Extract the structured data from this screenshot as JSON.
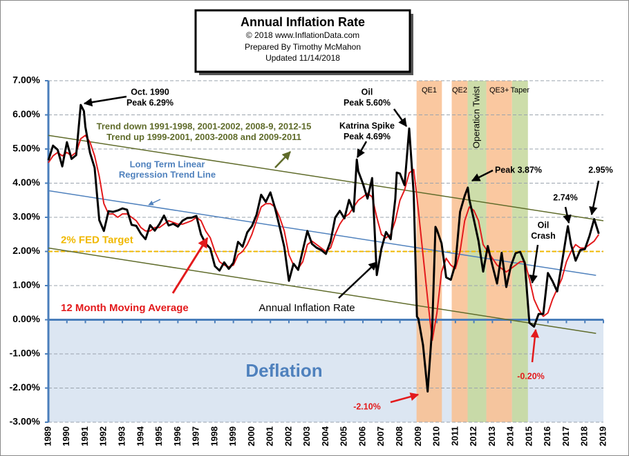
{
  "chart_data": {
    "type": "line",
    "title": "Annual  Inflation Rate",
    "subtitle_lines": [
      "© 2018  www.InflationData.com",
      "Prepared  By Timothy McMahon",
      "Updated  11/14/2018"
    ],
    "xlim": [
      1989,
      2019
    ],
    "xticks": [
      1989,
      1990,
      1991,
      1992,
      1993,
      1994,
      1995,
      1996,
      1997,
      1998,
      1999,
      2000,
      2001,
      2002,
      2003,
      2004,
      2005,
      2006,
      2007,
      2008,
      2009,
      2010,
      2011,
      2012,
      2013,
      2014,
      2015,
      2016,
      2017,
      2018,
      2019
    ],
    "ylim": [
      -3,
      7
    ],
    "yticks": [
      {
        "value": -3,
        "label": "-3.00%"
      },
      {
        "value": -2,
        "label": "-2.00%"
      },
      {
        "value": -1,
        "label": "-1.00%"
      },
      {
        "value": 0,
        "label": "0.00%"
      },
      {
        "value": 1,
        "label": "1.00%"
      },
      {
        "value": 2,
        "label": "2.00%"
      },
      {
        "value": 3,
        "label": "3.00%"
      },
      {
        "value": 4,
        "label": "4.00%"
      },
      {
        "value": 5,
        "label": "5.00%"
      },
      {
        "value": 6,
        "label": "6.00%"
      },
      {
        "value": 7,
        "label": "7.00%"
      }
    ],
    "grid": true,
    "series": [
      {
        "name": "Annual Inflation Rate",
        "color": "#000000",
        "x": [
          1989.0,
          1989.25,
          1989.5,
          1989.75,
          1990.0,
          1990.25,
          1990.5,
          1990.75,
          1990.92,
          1991.0,
          1991.25,
          1991.5,
          1991.75,
          1992.0,
          1992.25,
          1992.5,
          1992.75,
          1993.0,
          1993.25,
          1993.5,
          1993.75,
          1994.0,
          1994.25,
          1994.5,
          1994.75,
          1995.0,
          1995.25,
          1995.5,
          1995.75,
          1996.0,
          1996.25,
          1996.5,
          1996.75,
          1997.0,
          1997.25,
          1997.5,
          1997.75,
          1998.0,
          1998.25,
          1998.5,
          1998.75,
          1999.0,
          1999.25,
          1999.5,
          1999.75,
          2000.0,
          2000.25,
          2000.5,
          2000.75,
          2001.0,
          2001.25,
          2001.5,
          2001.75,
          2002.0,
          2002.25,
          2002.5,
          2002.75,
          2003.0,
          2003.25,
          2003.5,
          2003.75,
          2004.0,
          2004.25,
          2004.5,
          2004.75,
          2005.0,
          2005.25,
          2005.5,
          2005.67,
          2005.75,
          2006.0,
          2006.25,
          2006.5,
          2006.75,
          2007.0,
          2007.25,
          2007.5,
          2007.75,
          2007.83,
          2008.0,
          2008.25,
          2008.5,
          2008.75,
          2008.92,
          2009.0,
          2009.25,
          2009.5,
          2009.75,
          2009.92,
          2010.0,
          2010.25,
          2010.5,
          2010.75,
          2011.0,
          2011.25,
          2011.5,
          2011.67,
          2011.75,
          2012.0,
          2012.25,
          2012.5,
          2012.75,
          2013.0,
          2013.25,
          2013.5,
          2013.75,
          2014.0,
          2014.25,
          2014.5,
          2014.75,
          2015.0,
          2015.25,
          2015.5,
          2015.75,
          2016.0,
          2016.25,
          2016.5,
          2016.75,
          2017.0,
          2017.08,
          2017.25,
          2017.5,
          2017.75,
          2018.0,
          2018.25,
          2018.5,
          2018.75
        ],
        "values": [
          4.67,
          5.1,
          4.98,
          4.49,
          5.2,
          4.71,
          4.82,
          6.29,
          6.11,
          5.65,
          4.89,
          4.45,
          2.92,
          2.6,
          3.18,
          3.16,
          3.2,
          3.26,
          3.22,
          2.78,
          2.75,
          2.52,
          2.36,
          2.77,
          2.61,
          2.8,
          3.05,
          2.76,
          2.81,
          2.73,
          2.9,
          2.98,
          2.99,
          3.04,
          2.5,
          2.23,
          2.09,
          1.57,
          1.44,
          1.68,
          1.49,
          1.67,
          2.28,
          2.14,
          2.56,
          2.74,
          3.07,
          3.66,
          3.45,
          3.73,
          3.27,
          2.72,
          2.13,
          1.14,
          1.64,
          1.46,
          2.03,
          2.6,
          2.22,
          2.11,
          2.04,
          1.93,
          2.29,
          2.99,
          3.19,
          2.97,
          3.51,
          3.17,
          4.69,
          4.35,
          3.99,
          3.55,
          4.15,
          1.31,
          2.08,
          2.57,
          2.36,
          3.54,
          4.31,
          4.28,
          3.94,
          5.6,
          3.66,
          0.09,
          0.03,
          -0.74,
          -2.1,
          -0.18,
          2.72,
          2.63,
          2.24,
          1.24,
          1.17,
          1.63,
          3.16,
          3.63,
          3.87,
          3.53,
          2.93,
          2.3,
          1.41,
          2.16,
          1.59,
          1.06,
          1.96,
          0.96,
          1.58,
          1.95,
          1.99,
          1.66,
          -0.09,
          -0.2,
          0.17,
          0.17,
          1.37,
          1.13,
          0.83,
          1.64,
          2.5,
          2.74,
          2.2,
          1.73,
          2.04,
          2.07,
          2.46,
          2.95,
          2.52
        ]
      },
      {
        "name": "12 Month Moving Average",
        "color": "#e31a1c",
        "x": [
          1989.0,
          1989.25,
          1989.5,
          1989.75,
          1990.0,
          1990.25,
          1990.5,
          1990.75,
          1991.0,
          1991.25,
          1991.5,
          1991.75,
          1992.0,
          1992.25,
          1992.5,
          1992.75,
          1993.0,
          1993.25,
          1993.5,
          1993.75,
          1994.0,
          1994.25,
          1994.5,
          1994.75,
          1995.0,
          1995.25,
          1995.5,
          1995.75,
          1996.0,
          1996.25,
          1996.5,
          1996.75,
          1997.0,
          1997.25,
          1997.5,
          1997.75,
          1998.0,
          1998.25,
          1998.5,
          1998.75,
          1999.0,
          1999.25,
          1999.5,
          1999.75,
          2000.0,
          2000.25,
          2000.5,
          2000.75,
          2001.0,
          2001.25,
          2001.5,
          2001.75,
          2002.0,
          2002.25,
          2002.5,
          2002.75,
          2003.0,
          2003.25,
          2003.5,
          2003.75,
          2004.0,
          2004.25,
          2004.5,
          2004.75,
          2005.0,
          2005.25,
          2005.5,
          2005.75,
          2006.0,
          2006.25,
          2006.5,
          2006.75,
          2007.0,
          2007.25,
          2007.5,
          2007.75,
          2008.0,
          2008.25,
          2008.5,
          2008.75,
          2009.0,
          2009.25,
          2009.5,
          2009.75,
          2010.0,
          2010.25,
          2010.5,
          2010.75,
          2011.0,
          2011.25,
          2011.5,
          2011.75,
          2012.0,
          2012.25,
          2012.5,
          2012.75,
          2013.0,
          2013.25,
          2013.5,
          2013.75,
          2014.0,
          2014.25,
          2014.5,
          2014.75,
          2015.0,
          2015.25,
          2015.5,
          2015.75,
          2016.0,
          2016.25,
          2016.5,
          2016.75,
          2017.0,
          2017.25,
          2017.5,
          2017.75,
          2018.0,
          2018.25,
          2018.5,
          2018.75
        ],
        "values": [
          4.6,
          4.8,
          4.9,
          4.8,
          4.9,
          4.8,
          4.9,
          5.3,
          5.4,
          5.2,
          4.8,
          4.2,
          3.4,
          3.1,
          3.1,
          3.0,
          3.1,
          3.1,
          3.0,
          2.9,
          2.7,
          2.6,
          2.6,
          2.7,
          2.7,
          2.8,
          2.9,
          2.85,
          2.8,
          2.8,
          2.85,
          2.9,
          3.0,
          2.9,
          2.6,
          2.4,
          2.0,
          1.7,
          1.6,
          1.55,
          1.6,
          1.9,
          2.0,
          2.2,
          2.5,
          2.9,
          3.3,
          3.4,
          3.4,
          3.3,
          3.0,
          2.6,
          1.9,
          1.6,
          1.5,
          1.7,
          2.2,
          2.3,
          2.2,
          2.1,
          2.0,
          2.1,
          2.5,
          2.8,
          3.0,
          3.1,
          3.3,
          3.5,
          3.6,
          3.7,
          3.6,
          3.0,
          2.5,
          2.4,
          2.5,
          2.9,
          3.5,
          3.8,
          4.3,
          4.4,
          3.2,
          1.9,
          0.6,
          -0.6,
          0.2,
          1.4,
          1.8,
          1.6,
          1.5,
          2.0,
          2.9,
          3.3,
          3.2,
          2.9,
          2.2,
          2.0,
          1.8,
          1.6,
          1.5,
          1.4,
          1.5,
          1.6,
          1.7,
          1.7,
          1.2,
          0.6,
          0.3,
          0.1,
          0.2,
          0.6,
          0.9,
          1.2,
          1.7,
          2.0,
          2.2,
          2.1,
          2.1,
          2.2,
          2.3,
          2.5
        ]
      }
    ],
    "trend_lines": [
      {
        "label_lines": [
          "Long Term Linear",
          "Regression Trend Line"
        ],
        "color": "#4f81bd",
        "x": [
          1989,
          2018.6
        ],
        "values": [
          3.78,
          1.3
        ]
      },
      {
        "color": "#5f6b2a",
        "x": [
          1989,
          2019
        ],
        "values": [
          5.4,
          2.9
        ]
      },
      {
        "color": "#5f6b2a",
        "x": [
          1989,
          2018.6
        ],
        "values": [
          2.1,
          -0.4
        ]
      }
    ],
    "target": {
      "label": "2% FED Target",
      "value": 2,
      "color": "#f0b800"
    },
    "deflation": {
      "label": "Deflation",
      "color": "#dce6f2"
    },
    "bands": [
      {
        "label": "QE1",
        "start": 2008.9,
        "end": 2010.27,
        "color": "#f9be8f"
      },
      {
        "label": "QE2",
        "start": 2010.8,
        "end": 2011.66,
        "color": "#f9be8f"
      },
      {
        "label": "Operation Twist",
        "start": 2011.66,
        "end": 2012.67,
        "color": "#c4d79b"
      },
      {
        "label": "QE3+",
        "start": 2012.67,
        "end": 2014.06,
        "color": "#f9be8f"
      },
      {
        "label": "Taper",
        "start": 2014.06,
        "end": 2014.92,
        "color": "#c4d79b"
      }
    ],
    "annotations": [
      {
        "lines": [
          "Oct. 1990",
          "Peak 6.29%"
        ],
        "color": "#000000"
      },
      {
        "lines": [
          "Oil",
          "Peak 5.60%"
        ],
        "color": "#000000"
      },
      {
        "lines": [
          "Katrina Spike",
          "Peak 4.69%"
        ],
        "color": "#000000"
      },
      {
        "lines": [
          "Peak 3.87%"
        ],
        "color": "#000000"
      },
      {
        "lines": [
          "2.74%"
        ],
        "color": "#000000"
      },
      {
        "lines": [
          "2.95%"
        ],
        "color": "#000000"
      },
      {
        "lines": [
          "Oil",
          "Crash"
        ],
        "color": "#000000"
      },
      {
        "lines": [
          "-0.20%"
        ],
        "color": "#e31a1c"
      },
      {
        "lines": [
          "-2.10%"
        ],
        "color": "#e31a1c"
      },
      {
        "lines": [
          "Trend  down 1991-1998,  2001-2002,  2008-9,  2012-15",
          "Trend  up  1999-2001,  2003-2008  and 2009-2011"
        ],
        "color": "#5f6b2a"
      }
    ]
  }
}
